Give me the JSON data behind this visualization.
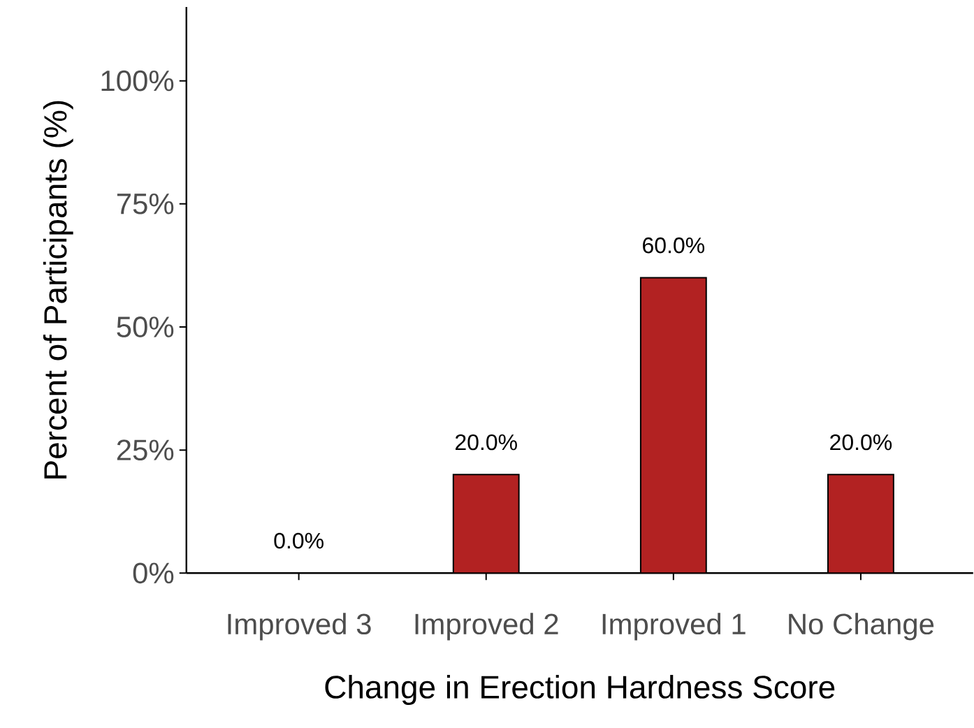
{
  "chart_data": {
    "type": "bar",
    "xlabel": "Change in Erection Hardness Score",
    "ylabel": "Percent of Participants (%)",
    "categories": [
      "Improved 3",
      "Improved 2",
      "Improved 1",
      "No Change"
    ],
    "values": [
      0,
      20,
      60,
      20
    ],
    "value_labels": [
      "0.0%",
      "20.0%",
      "60.0%",
      "20.0%"
    ],
    "color": "#b22222",
    "ylim": [
      0,
      115
    ],
    "yticks": [
      {
        "value": 0,
        "label": "0%"
      },
      {
        "value": 25,
        "label": "25%"
      },
      {
        "value": 50,
        "label": "50%"
      },
      {
        "value": 75,
        "label": "75%"
      },
      {
        "value": 100,
        "label": "100%"
      }
    ],
    "grid": false
  }
}
